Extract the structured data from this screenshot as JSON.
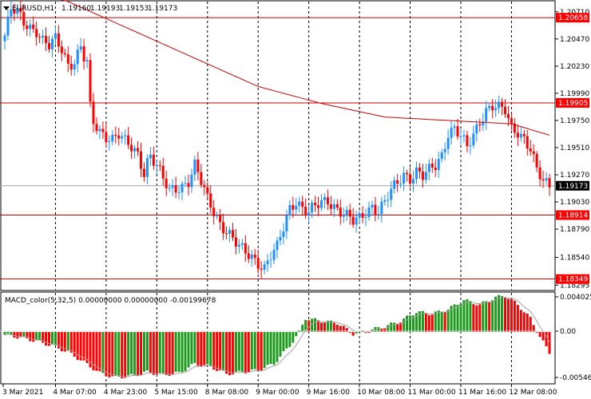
{
  "header": {
    "symbol_label": "EURUSD,H1",
    "ohlc": [
      "1.19160",
      "1.19193",
      "1.19153",
      "1.19173"
    ]
  },
  "macd": {
    "label": "MACD_color(5,32,5) 0.00000000 0.00000000 -0.00199678"
  },
  "colors": {
    "bull": "#1e90ff",
    "bear": "#ff0000",
    "hline": "#c80000",
    "hline_label_bg": "#ff0000",
    "ma": "#cc0000",
    "current_price_bg": "#000000",
    "current_line": "#9aa6b4",
    "hist_pos": "#1b9a1b",
    "hist_neg": "#ff0000",
    "signal": "#a0a0a0",
    "grid_v": "#000000"
  },
  "chart_data": [
    {
      "type": "candlestick",
      "symbol": "EURUSD",
      "timeframe": "H1",
      "ylim": [
        1.18255,
        1.208
      ],
      "price_ticks": [
        "1.20710",
        "1.20470",
        "1.20230",
        "1.19990",
        "1.19750",
        "1.19510",
        "1.19270",
        "1.19030",
        "1.18790",
        "1.18540",
        "1.18295"
      ],
      "horizontal_levels": [
        {
          "price": 1.20658,
          "label": "1.20658"
        },
        {
          "price": 1.19905,
          "label": "1.19905"
        },
        {
          "price": 1.18914,
          "label": "1.18914"
        },
        {
          "price": 1.18349,
          "label": "1.18349"
        }
      ],
      "current_price": {
        "price": 1.19173,
        "label": "1.19173"
      },
      "time_labels": [
        "3 Mar 2021",
        "4 Mar 07:00",
        "4 Mar 23:00",
        "5 Mar 15:00",
        "8 Mar 08:00",
        "9 Mar 00:00",
        "9 Mar 16:00",
        "10 Mar 08:00",
        "11 Mar 00:00",
        "11 Mar 16:00",
        "12 Mar 08:00"
      ],
      "close_path": [
        [
          0,
          1.205
        ],
        [
          2,
          1.2072
        ],
        [
          4,
          1.207
        ],
        [
          6,
          1.2062
        ],
        [
          8,
          1.2058
        ],
        [
          10,
          1.2055
        ],
        [
          12,
          1.2045
        ],
        [
          14,
          1.204
        ],
        [
          16,
          1.2046
        ],
        [
          18,
          1.2038
        ],
        [
          20,
          1.2025
        ],
        [
          22,
          1.2028
        ],
        [
          24,
          1.204
        ],
        [
          25,
          1.203
        ],
        [
          26,
          1.2025
        ],
        [
          27,
          1.1985
        ],
        [
          28,
          1.1972
        ],
        [
          30,
          1.1965
        ],
        [
          32,
          1.1962
        ],
        [
          34,
          1.196
        ],
        [
          36,
          1.1963
        ],
        [
          38,
          1.1955
        ],
        [
          40,
          1.195
        ],
        [
          42,
          1.1945
        ],
        [
          44,
          1.193
        ],
        [
          45,
          1.194
        ],
        [
          46,
          1.1945
        ],
        [
          48,
          1.1935
        ],
        [
          50,
          1.1922
        ],
        [
          52,
          1.1912
        ],
        [
          54,
          1.1915
        ],
        [
          56,
          1.1918
        ],
        [
          58,
          1.1922
        ],
        [
          60,
          1.1935
        ],
        [
          62,
          1.192
        ],
        [
          64,
          1.1905
        ],
        [
          66,
          1.1895
        ],
        [
          68,
          1.1885
        ],
        [
          70,
          1.1878
        ],
        [
          72,
          1.187
        ],
        [
          74,
          1.1862
        ],
        [
          76,
          1.1858
        ],
        [
          78,
          1.1855
        ],
        [
          80,
          1.185
        ],
        [
          82,
          1.1845
        ],
        [
          84,
          1.1855
        ],
        [
          86,
          1.1862
        ],
        [
          88,
          1.188
        ],
        [
          90,
          1.1898
        ],
        [
          92,
          1.1905
        ],
        [
          94,
          1.1898
        ],
        [
          96,
          1.1893
        ],
        [
          98,
          1.1898
        ],
        [
          100,
          1.1902
        ],
        [
          102,
          1.1905
        ],
        [
          104,
          1.19
        ],
        [
          106,
          1.1895
        ],
        [
          108,
          1.189
        ],
        [
          110,
          1.1885
        ],
        [
          112,
          1.1888
        ],
        [
          114,
          1.1895
        ],
        [
          116,
          1.19
        ],
        [
          118,
          1.1895
        ],
        [
          120,
          1.1902
        ],
        [
          122,
          1.1912
        ],
        [
          124,
          1.192
        ],
        [
          126,
          1.1928
        ],
        [
          128,
          1.1925
        ],
        [
          130,
          1.193
        ],
        [
          132,
          1.1925
        ],
        [
          134,
          1.193
        ],
        [
          136,
          1.1935
        ],
        [
          138,
          1.1945
        ],
        [
          140,
          1.1965
        ],
        [
          142,
          1.1968
        ],
        [
          144,
          1.196
        ],
        [
          146,
          1.195
        ],
        [
          148,
          1.1962
        ],
        [
          150,
          1.1975
        ],
        [
          152,
          1.1985
        ],
        [
          154,
          1.1988
        ],
        [
          156,
          1.1985
        ],
        [
          158,
          1.1983
        ],
        [
          159,
          1.1975
        ],
        [
          160,
          1.1968
        ],
        [
          162,
          1.1966
        ],
        [
          164,
          1.196
        ],
        [
          166,
          1.195
        ],
        [
          168,
          1.193
        ],
        [
          170,
          1.192
        ],
        [
          172,
          1.1917
        ]
      ],
      "moving_average_path": [
        [
          0,
          1.2095
        ],
        [
          20,
          1.208
        ],
        [
          40,
          1.2055
        ],
        [
          60,
          1.203
        ],
        [
          80,
          1.2005
        ],
        [
          100,
          1.199
        ],
        [
          120,
          1.1978
        ],
        [
          140,
          1.1975
        ],
        [
          160,
          1.1972
        ],
        [
          172,
          1.1962
        ]
      ]
    },
    {
      "type": "bar",
      "name": "MACD_color(5,32,5)",
      "ylim": [
        -0.0056,
        0.0043
      ],
      "y_ticks": [
        "0.0040259",
        "0.00",
        "-0.005461"
      ],
      "values_path": [
        [
          0,
          -0.0003
        ],
        [
          5,
          -0.0006
        ],
        [
          10,
          -0.001
        ],
        [
          15,
          -0.0015
        ],
        [
          20,
          -0.0022
        ],
        [
          25,
          -0.0033
        ],
        [
          30,
          -0.0045
        ],
        [
          35,
          -0.005
        ],
        [
          40,
          -0.0048
        ],
        [
          45,
          -0.0044
        ],
        [
          50,
          -0.0047
        ],
        [
          55,
          -0.0045
        ],
        [
          60,
          -0.0035
        ],
        [
          65,
          -0.0038
        ],
        [
          70,
          -0.0046
        ],
        [
          75,
          -0.0044
        ],
        [
          80,
          -0.0042
        ],
        [
          85,
          -0.0035
        ],
        [
          90,
          -0.0015
        ],
        [
          93,
          0.0
        ],
        [
          95,
          0.0015
        ],
        [
          100,
          0.0012
        ],
        [
          105,
          0.001
        ],
        [
          110,
          -0.0002
        ],
        [
          115,
          0.0002
        ],
        [
          120,
          0.0006
        ],
        [
          125,
          0.0012
        ],
        [
          130,
          0.0022
        ],
        [
          135,
          0.002
        ],
        [
          140,
          0.0025
        ],
        [
          145,
          0.0035
        ],
        [
          150,
          0.003
        ],
        [
          155,
          0.0038
        ],
        [
          158,
          0.004
        ],
        [
          162,
          0.003
        ],
        [
          166,
          0.0015
        ],
        [
          169,
          -0.0005
        ],
        [
          172,
          -0.0023
        ]
      ]
    }
  ]
}
